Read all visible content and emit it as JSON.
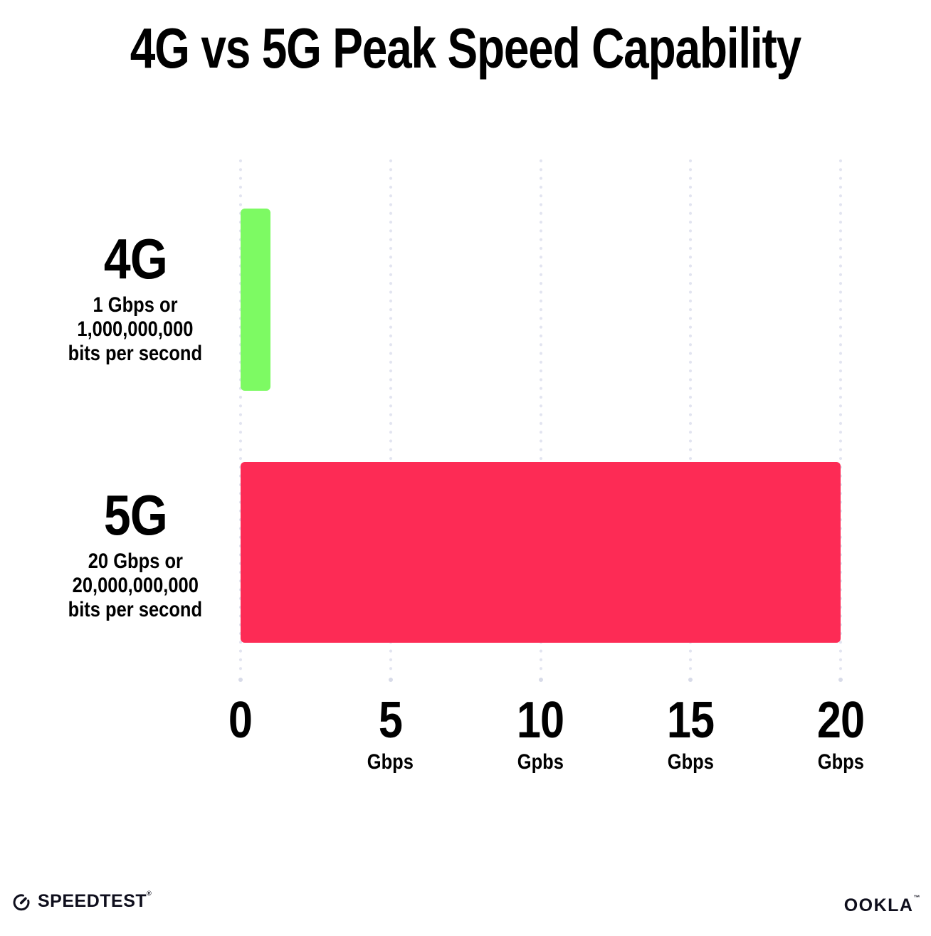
{
  "title": "4G vs 5G Peak Speed Capability",
  "chart_data": {
    "type": "bar",
    "orientation": "horizontal",
    "title": "4G vs 5G Peak Speed Capability",
    "xlim": [
      0,
      20
    ],
    "grid": "dotted vertical gridlines at each tick, ending in a larger dot at the axis",
    "legend": "none",
    "rows": [
      {
        "category": "4G",
        "value_gbps": 1,
        "bar_color": "#7DFA63",
        "sublabel_line1": "1 Gbps or",
        "sublabel_line2": "1,000,000,000",
        "sublabel_line3": "bits per second"
      },
      {
        "category": "5G",
        "value_gbps": 20,
        "bar_color": "#FD2B55",
        "sublabel_line1": "20 Gbps or",
        "sublabel_line2": "20,000,000,000",
        "sublabel_line3": "bits per second"
      }
    ],
    "x_ticks": [
      {
        "value": 0,
        "label": "0",
        "unit": ""
      },
      {
        "value": 5,
        "label": "5",
        "unit": "Gbps"
      },
      {
        "value": 10,
        "label": "10",
        "unit": "Gpbs"
      },
      {
        "value": 15,
        "label": "15",
        "unit": "Gbps"
      },
      {
        "value": 20,
        "label": "20",
        "unit": "Gbps"
      }
    ]
  },
  "colors": {
    "bar_4g": "#7DFA63",
    "bar_5g": "#FD2B55",
    "grid_dot": "#E2E4F0",
    "grid_end_dot": "#D7DAE8",
    "text": "#000000"
  },
  "footer": {
    "speedtest": {
      "label": "SPEEDTEST",
      "mark": "®"
    },
    "ookla": {
      "label": "OOKLA",
      "mark": "™"
    }
  }
}
